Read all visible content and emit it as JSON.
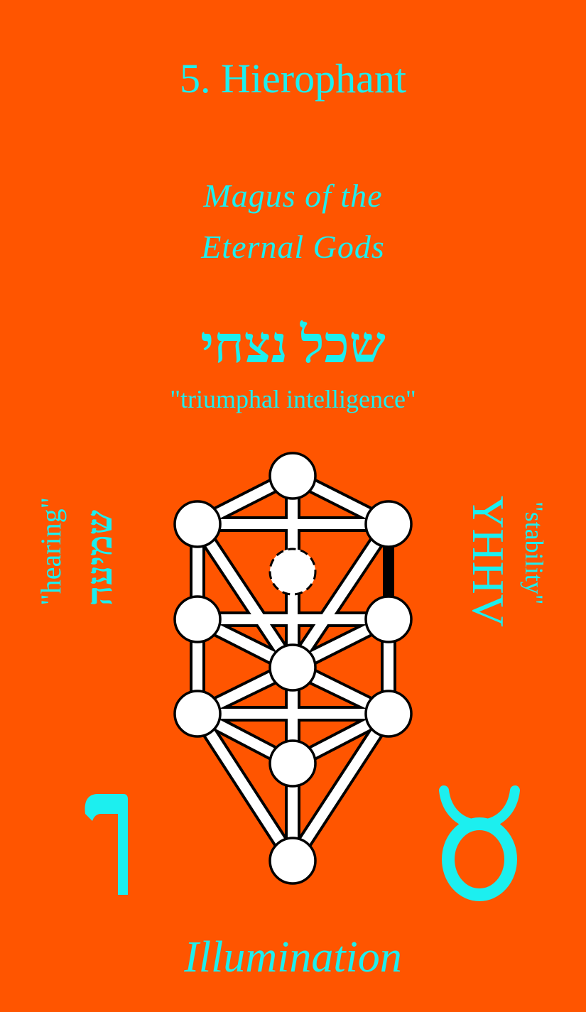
{
  "card": {
    "title": "5. Hierophant",
    "subtitle_line1": "Magus of the",
    "subtitle_line2": "Eternal Gods",
    "hebrew_name": "שכל נצחי",
    "translation": "\"triumphal intelligence\"",
    "left_hebrew": "שמיעה",
    "left_sense": "\"hearing\"",
    "right_name": "YHHV",
    "right_sense": "\"stability\"",
    "bottom_word": "Illumination",
    "letter_icon": "hebrew-letter-vav-icon",
    "sign_icon": "taurus-icon"
  },
  "colors": {
    "background": "#FF5500",
    "text": "#1CEFEF",
    "sephirah_fill": "#FFFFFF",
    "outline": "#000000",
    "highlighted_path": "#000000"
  }
}
